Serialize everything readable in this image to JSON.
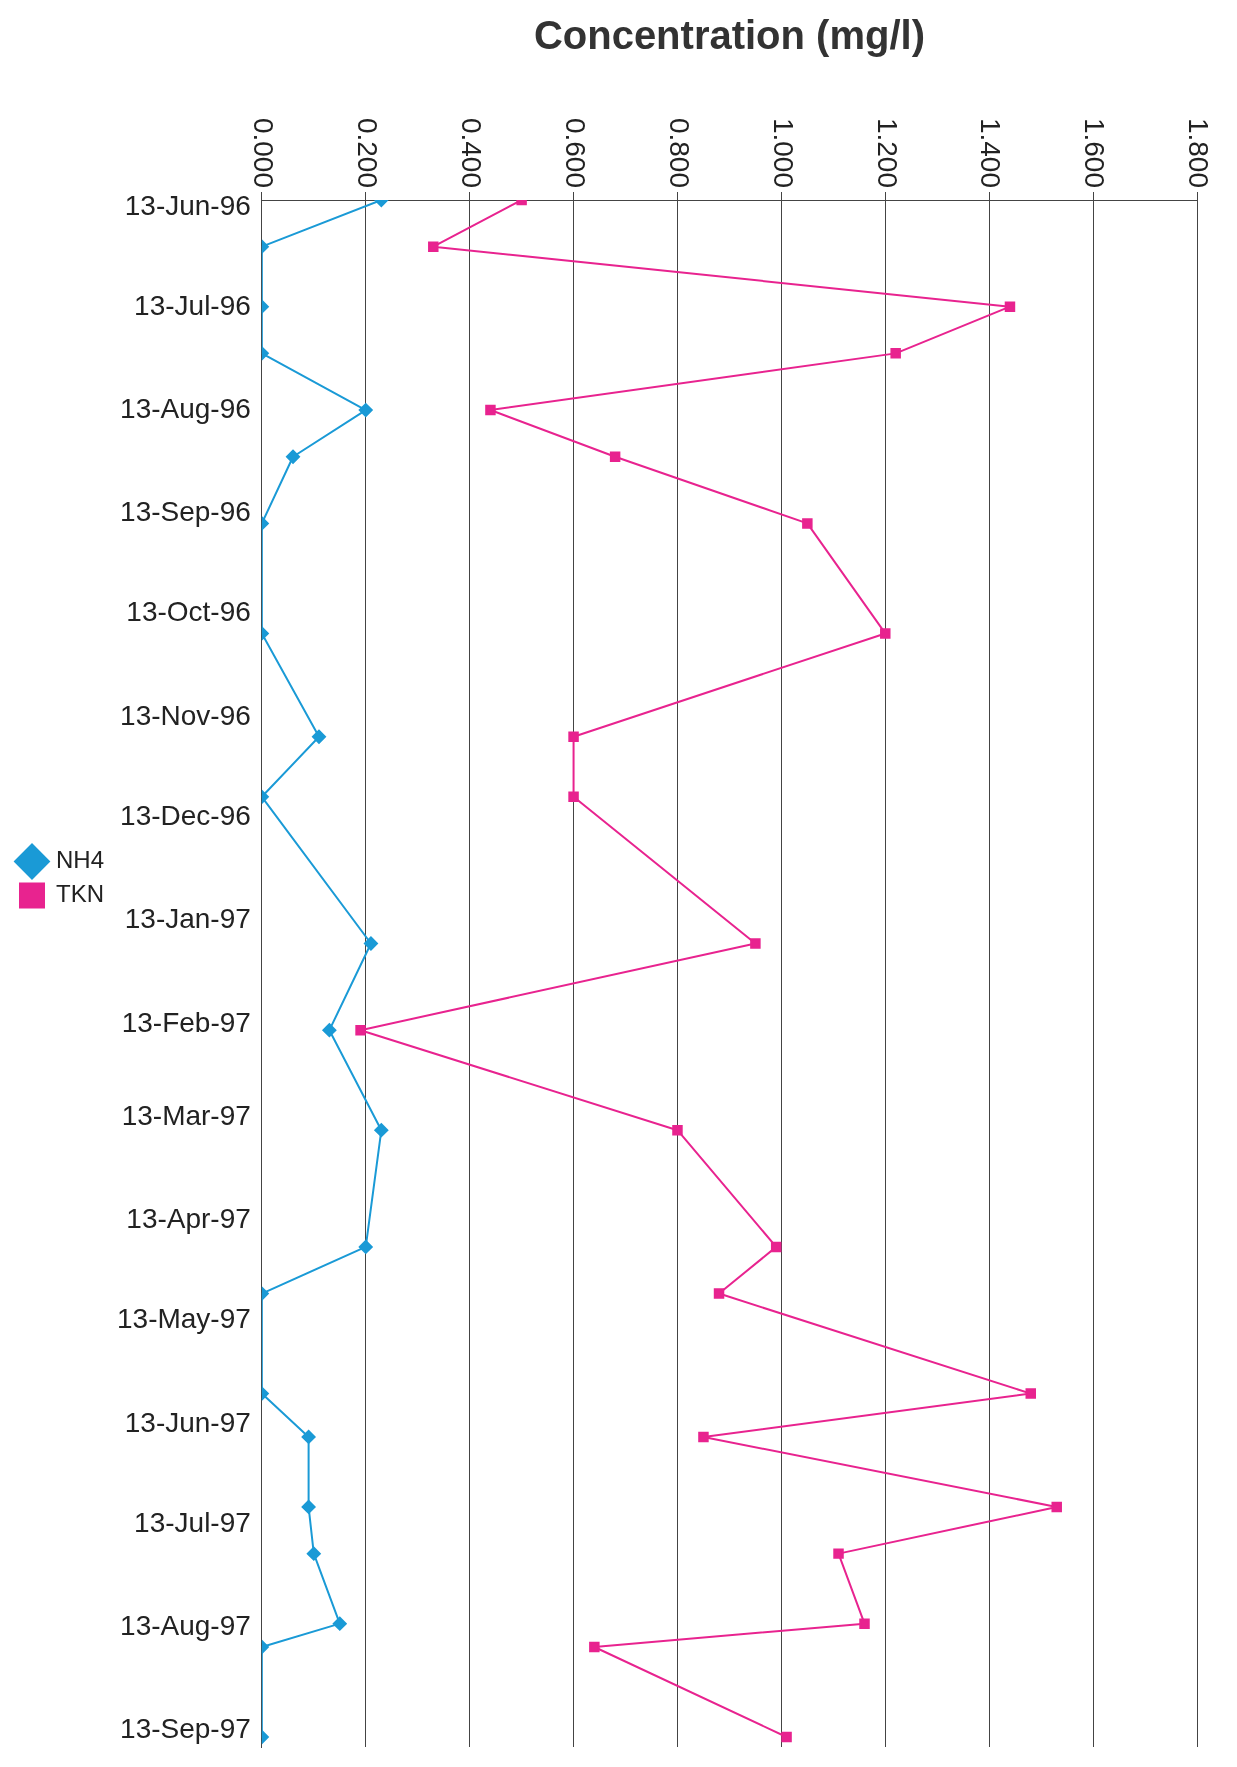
{
  "chart_data": {
    "type": "line",
    "orientation": "horizontal",
    "xlabel": "Concentration (mg/l)",
    "legend": "left",
    "grid": "x",
    "x": [
      "1996-06-13",
      "1996-06-27",
      "1996-07-15",
      "1996-07-29",
      "1996-08-15",
      "1996-08-29",
      "1996-09-18",
      "1996-10-21",
      "1996-11-21",
      "1996-12-09",
      "1997-01-22",
      "1997-02-17",
      "1997-03-19",
      "1997-04-23",
      "1997-05-07",
      "1997-06-06",
      "1997-06-19",
      "1997-07-10",
      "1997-07-24",
      "1997-08-14",
      "1997-08-21",
      "1997-09-17"
    ],
    "series": [
      {
        "name": "NH4",
        "color": "#1a9ad6",
        "marker": "diamond",
        "values": [
          0.23,
          0,
          0,
          0,
          0.2,
          0.06,
          0,
          0,
          0.11,
          0,
          0.21,
          0.13,
          0.23,
          0.2,
          0,
          0,
          0.09,
          0.09,
          0.1,
          0.15,
          0,
          0
        ]
      },
      {
        "name": "TKN",
        "color": "#e8238f",
        "marker": "square",
        "values": [
          0.5,
          0.33,
          1.44,
          1.22,
          0.44,
          0.68,
          1.05,
          1.2,
          0.6,
          0.6,
          0.95,
          0.19,
          0.8,
          0.99,
          0.88,
          1.48,
          0.85,
          1.53,
          1.11,
          1.16,
          0.64,
          1.01
        ]
      }
    ],
    "xlim": [
      0,
      1.8
    ],
    "xticks": [
      {
        "value": 0,
        "label": "0.000"
      },
      {
        "value": 0.2,
        "label": "0.200"
      },
      {
        "value": 0.4,
        "label": "0.400"
      },
      {
        "value": 0.6,
        "label": "0.600"
      },
      {
        "value": 0.8,
        "label": "0.800"
      },
      {
        "value": 1,
        "label": "1.000"
      },
      {
        "value": 1.2,
        "label": "1.200"
      },
      {
        "value": 1.4,
        "label": "1.400"
      },
      {
        "value": 1.6,
        "label": "1.600"
      },
      {
        "value": 1.8,
        "label": "1.800"
      }
    ],
    "ylim": [
      "1997-09-20",
      "1996-06-13"
    ],
    "yticks": [
      {
        "value": "1996-06-13",
        "label": "13-Jun-96"
      },
      {
        "value": "1996-07-13",
        "label": "13-Jul-96"
      },
      {
        "value": "1996-08-13",
        "label": "13-Aug-96"
      },
      {
        "value": "1996-09-13",
        "label": "13-Sep-96"
      },
      {
        "value": "1996-10-13",
        "label": "13-Oct-96"
      },
      {
        "value": "1996-11-13",
        "label": "13-Nov-96"
      },
      {
        "value": "1996-12-13",
        "label": "13-Dec-96"
      },
      {
        "value": "1997-01-13",
        "label": "13-Jan-97"
      },
      {
        "value": "1997-02-13",
        "label": "13-Feb-97"
      },
      {
        "value": "1997-03-13",
        "label": "13-Mar-97"
      },
      {
        "value": "1997-04-13",
        "label": "13-Apr-97"
      },
      {
        "value": "1997-05-13",
        "label": "13-May-97"
      },
      {
        "value": "1997-06-13",
        "label": "13-Jun-97"
      },
      {
        "value": "1997-07-13",
        "label": "13-Jul-97"
      },
      {
        "value": "1997-08-13",
        "label": "13-Aug-97"
      },
      {
        "value": "1997-09-13",
        "label": "13-Sep-97"
      }
    ]
  }
}
